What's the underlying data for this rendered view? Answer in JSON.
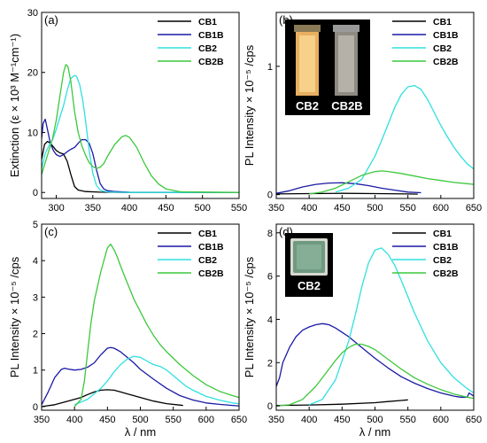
{
  "colors": {
    "CB1": "#000000",
    "CB1B": "#1a1aa6",
    "CB2": "#2fe0e0",
    "CB2B": "#3cc83c"
  },
  "chart_data": [
    {
      "type": "line",
      "panel": "(a)",
      "xlabel": "",
      "ylabel": "Extinction (ε × 10³ M⁻¹cm⁻¹)",
      "xlim": [
        280,
        550
      ],
      "ylim": [
        -1,
        30
      ],
      "xticks": [
        300,
        350,
        400,
        450,
        500,
        550
      ],
      "yticks": [
        0,
        10,
        20,
        30
      ],
      "legend_position": "top-right",
      "series": [
        {
          "name": "CB1",
          "color_key": "CB1",
          "x": [
            280,
            284,
            288,
            292,
            296,
            300,
            305,
            310,
            315,
            320,
            325,
            330,
            340,
            360,
            400,
            550
          ],
          "y": [
            5.5,
            8.0,
            8.5,
            8.2,
            7.6,
            7.0,
            6.6,
            6.4,
            5.2,
            3.0,
            1.0,
            0.4,
            0.15,
            0.05,
            0.0,
            0.0
          ]
        },
        {
          "name": "CB1B",
          "color_key": "CB1B",
          "x": [
            280,
            282,
            285,
            288,
            292,
            296,
            300,
            305,
            310,
            315,
            320,
            325,
            330,
            335,
            340,
            345,
            350,
            355,
            360,
            365,
            370,
            380,
            400,
            550
          ],
          "y": [
            9.0,
            11.5,
            12.2,
            10.5,
            8.2,
            7.0,
            6.3,
            6.0,
            6.3,
            6.8,
            7.2,
            7.5,
            8.2,
            8.8,
            8.8,
            8.2,
            6.5,
            3.8,
            1.5,
            0.6,
            0.3,
            0.15,
            0.05,
            0.0
          ]
        },
        {
          "name": "CB2",
          "color_key": "CB2",
          "x": [
            280,
            285,
            290,
            295,
            300,
            305,
            310,
            315,
            320,
            325,
            328,
            332,
            336,
            340,
            345,
            350,
            355,
            360,
            365,
            370,
            380,
            400,
            550
          ],
          "y": [
            4.0,
            6.5,
            7.8,
            8.8,
            10.5,
            12.5,
            14.5,
            17.0,
            19.0,
            19.5,
            19.3,
            18.0,
            15.5,
            12.0,
            7.0,
            3.2,
            1.2,
            0.4,
            0.2,
            0.1,
            0.05,
            0.0,
            0.0
          ]
        },
        {
          "name": "CB2B",
          "color_key": "CB2B",
          "x": [
            280,
            285,
            290,
            295,
            300,
            305,
            310,
            313,
            316,
            320,
            325,
            330,
            335,
            340,
            345,
            350,
            355,
            360,
            365,
            370,
            380,
            390,
            395,
            400,
            410,
            420,
            430,
            440,
            450,
            470,
            550
          ],
          "y": [
            3.0,
            5.0,
            7.0,
            9.0,
            12.0,
            16.0,
            20.0,
            21.3,
            21.0,
            18.5,
            13.5,
            10.0,
            7.8,
            6.2,
            5.0,
            4.3,
            4.0,
            4.2,
            4.8,
            6.0,
            8.0,
            9.3,
            9.5,
            9.2,
            7.5,
            5.0,
            2.8,
            1.4,
            0.6,
            0.1,
            0.0
          ]
        }
      ]
    },
    {
      "type": "line",
      "panel": "(b)",
      "xlabel": "",
      "ylabel": "PL Intensity × 10⁻⁵ /cps",
      "xlim": [
        350,
        650
      ],
      "ylim": [
        -0.03,
        1.42
      ],
      "xticks": [
        350,
        400,
        450,
        500,
        550,
        600,
        650
      ],
      "yticks": [
        0,
        1
      ],
      "legend_position": "top-right",
      "inset": {
        "labels": [
          "CB2",
          "CB2B"
        ]
      },
      "series": [
        {
          "name": "CB1",
          "color_key": "CB1",
          "x": [
            350,
            400,
            450,
            500,
            550,
            565
          ],
          "y": [
            0.005,
            0.008,
            0.01,
            0.008,
            0.005,
            0.004
          ]
        },
        {
          "name": "CB1B",
          "color_key": "CB1B",
          "x": [
            350,
            370,
            390,
            410,
            430,
            450,
            470,
            490,
            510,
            530,
            550,
            570
          ],
          "y": [
            0.01,
            0.03,
            0.06,
            0.08,
            0.09,
            0.092,
            0.085,
            0.07,
            0.05,
            0.035,
            0.02,
            0.015
          ]
        },
        {
          "name": "CB2",
          "color_key": "CB2",
          "x": [
            440,
            460,
            480,
            500,
            510,
            520,
            530,
            540,
            550,
            560,
            570,
            580,
            590,
            600,
            610,
            620,
            630,
            640,
            650
          ],
          "y": [
            0.02,
            0.05,
            0.12,
            0.3,
            0.42,
            0.55,
            0.68,
            0.78,
            0.84,
            0.85,
            0.82,
            0.74,
            0.64,
            0.54,
            0.45,
            0.37,
            0.3,
            0.24,
            0.2
          ]
        },
        {
          "name": "CB2B",
          "color_key": "CB2B",
          "x": [
            400,
            420,
            440,
            460,
            480,
            500,
            510,
            520,
            540,
            560,
            580,
            600,
            620,
            640,
            650
          ],
          "y": [
            0.005,
            0.02,
            0.05,
            0.1,
            0.15,
            0.18,
            0.185,
            0.18,
            0.165,
            0.145,
            0.125,
            0.11,
            0.095,
            0.085,
            0.08
          ]
        }
      ]
    },
    {
      "type": "line",
      "panel": "(c)",
      "xlabel": "λ / nm",
      "ylabel": "PL Intensity × 10⁻⁵ /cps",
      "xlim": [
        350,
        650
      ],
      "ylim": [
        -0.1,
        5
      ],
      "xticks": [
        350,
        400,
        450,
        500,
        550,
        600,
        650
      ],
      "yticks": [
        0,
        1,
        2,
        3,
        4,
        5
      ],
      "legend_position": "top-right",
      "series": [
        {
          "name": "CB1",
          "color_key": "CB1",
          "x": [
            350,
            370,
            390,
            410,
            420,
            430,
            440,
            450,
            460,
            470,
            480,
            500,
            520,
            540,
            560,
            565
          ],
          "y": [
            0.0,
            0.05,
            0.15,
            0.25,
            0.33,
            0.4,
            0.45,
            0.46,
            0.45,
            0.4,
            0.35,
            0.25,
            0.15,
            0.08,
            0.04,
            0.03
          ]
        },
        {
          "name": "CB1B",
          "color_key": "CB1B",
          "x": [
            350,
            360,
            370,
            380,
            385,
            390,
            400,
            410,
            420,
            430,
            440,
            450,
            455,
            460,
            470,
            480,
            490,
            500,
            520,
            540,
            560,
            580,
            600,
            620,
            640,
            650
          ],
          "y": [
            0.05,
            0.4,
            0.8,
            1.02,
            1.05,
            1.03,
            1.0,
            1.02,
            1.08,
            1.2,
            1.42,
            1.6,
            1.62,
            1.6,
            1.5,
            1.35,
            1.2,
            1.02,
            0.75,
            0.5,
            0.3,
            0.18,
            0.1,
            0.06,
            0.03,
            0.02
          ]
        },
        {
          "name": "CB2",
          "color_key": "CB2",
          "x": [
            400,
            420,
            440,
            450,
            460,
            470,
            480,
            490,
            500,
            510,
            520,
            530,
            540,
            550,
            560,
            570,
            580,
            600,
            620,
            640,
            650
          ],
          "y": [
            0.05,
            0.2,
            0.5,
            0.7,
            0.95,
            1.15,
            1.3,
            1.38,
            1.35,
            1.25,
            1.15,
            1.1,
            1.0,
            0.85,
            0.7,
            0.55,
            0.45,
            0.28,
            0.18,
            0.1,
            0.08
          ]
        },
        {
          "name": "CB2B",
          "color_key": "CB2B",
          "x": [
            400,
            410,
            415,
            420,
            425,
            430,
            440,
            450,
            455,
            460,
            465,
            470,
            480,
            490,
            500,
            510,
            520,
            530,
            540,
            560,
            580,
            600,
            620,
            640,
            650
          ],
          "y": [
            0.0,
            0.2,
            0.7,
            1.5,
            2.3,
            2.9,
            3.7,
            4.35,
            4.45,
            4.3,
            4.1,
            3.85,
            3.4,
            2.95,
            2.6,
            2.25,
            1.95,
            1.7,
            1.5,
            1.15,
            0.85,
            0.6,
            0.42,
            0.3,
            0.25
          ]
        }
      ]
    },
    {
      "type": "line",
      "panel": "(d)",
      "xlabel": "λ / nm",
      "ylabel": "PL Intensity × 10⁻⁵ /cps",
      "xlim": [
        350,
        650
      ],
      "ylim": [
        -0.2,
        8.4
      ],
      "xticks": [
        350,
        400,
        450,
        500,
        550,
        600,
        650
      ],
      "yticks": [
        0,
        2,
        4,
        6,
        8
      ],
      "legend_position": "top-right",
      "inset": {
        "labels": [
          "CB2"
        ]
      },
      "series": [
        {
          "name": "CB1",
          "color_key": "CB1",
          "x": [
            350,
            400,
            450,
            500,
            520,
            540,
            550
          ],
          "y": [
            0.02,
            0.04,
            0.08,
            0.15,
            0.2,
            0.25,
            0.28
          ]
        },
        {
          "name": "CB1B",
          "color_key": "CB1B",
          "x": [
            350,
            355,
            360,
            370,
            380,
            390,
            400,
            410,
            420,
            425,
            430,
            440,
            450,
            460,
            470,
            480,
            500,
            520,
            540,
            560,
            580,
            600,
            620,
            630,
            640,
            643,
            650
          ],
          "y": [
            0.9,
            1.3,
            2.0,
            2.7,
            3.2,
            3.5,
            3.65,
            3.75,
            3.8,
            3.78,
            3.75,
            3.6,
            3.4,
            3.2,
            2.95,
            2.7,
            2.2,
            1.75,
            1.35,
            1.05,
            0.8,
            0.6,
            0.45,
            0.4,
            0.4,
            0.6,
            0.45
          ]
        },
        {
          "name": "CB2",
          "color_key": "CB2",
          "x": [
            400,
            420,
            440,
            460,
            470,
            480,
            490,
            500,
            510,
            520,
            530,
            540,
            560,
            580,
            600,
            620,
            640,
            650
          ],
          "y": [
            0.05,
            0.3,
            1.2,
            3.0,
            4.2,
            5.5,
            6.6,
            7.2,
            7.3,
            7.0,
            6.5,
            5.8,
            4.3,
            3.0,
            2.0,
            1.3,
            0.8,
            0.6
          ]
        },
        {
          "name": "CB2B",
          "color_key": "CB2B",
          "x": [
            350,
            370,
            390,
            410,
            430,
            440,
            450,
            460,
            470,
            480,
            490,
            500,
            520,
            540,
            560,
            580,
            600,
            620,
            640,
            650
          ],
          "y": [
            0.0,
            0.05,
            0.3,
            0.9,
            1.7,
            2.1,
            2.45,
            2.7,
            2.85,
            2.85,
            2.75,
            2.6,
            2.15,
            1.7,
            1.3,
            1.0,
            0.75,
            0.55,
            0.4,
            0.35
          ]
        }
      ]
    }
  ]
}
